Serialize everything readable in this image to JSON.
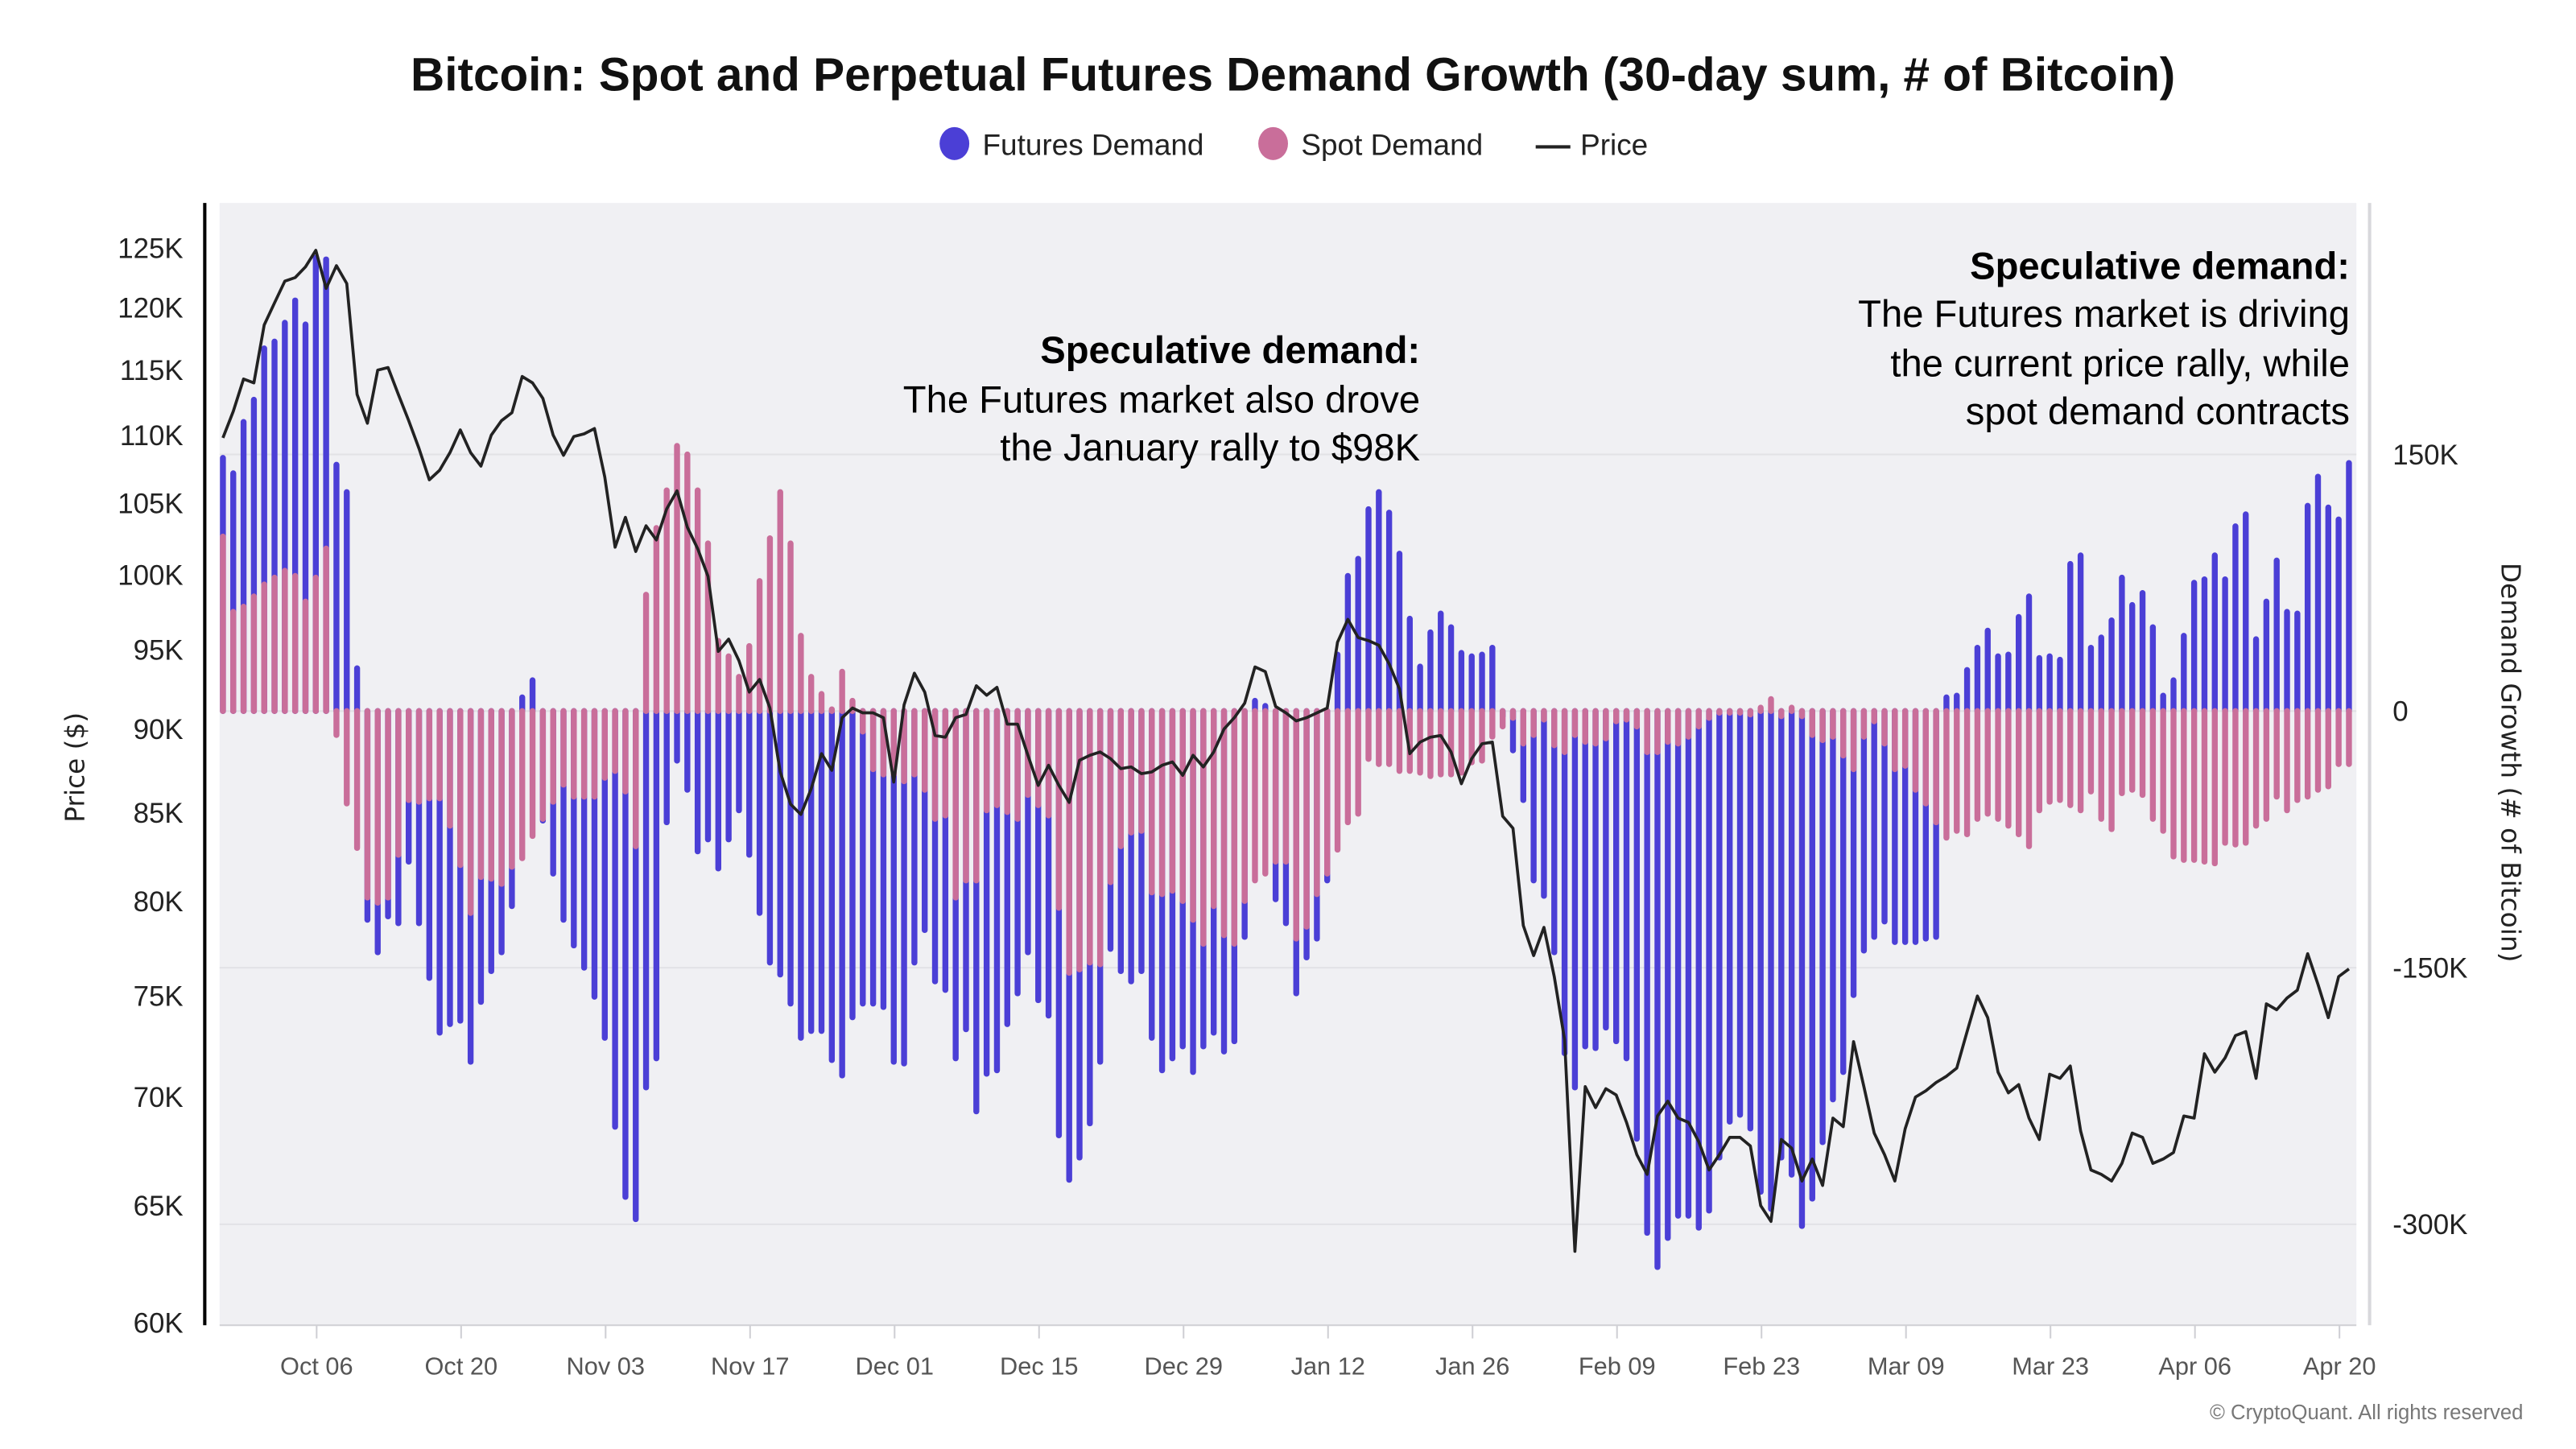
{
  "chart_data": {
    "type": "bar+line",
    "title": "Bitcoin: Spot and Perpetual Futures Demand Growth (30-day sum, # of Bitcoin)",
    "legend": {
      "placement": "top-center",
      "items": [
        {
          "label": "Futures Demand",
          "marker": "circle",
          "color": "#4b3fd6"
        },
        {
          "label": "Spot Demand",
          "marker": "circle",
          "color": "#c96e9a"
        },
        {
          "label": "Price",
          "marker": "line",
          "color": "#222222"
        }
      ]
    },
    "y_left": {
      "label": "Price ($)",
      "scale": "log",
      "unit": "thousands USD",
      "range": [
        59.9,
        128.9
      ],
      "ticks": [
        125,
        120,
        115,
        110,
        105,
        100,
        95,
        90,
        85,
        80,
        75,
        70,
        65,
        60
      ],
      "tick_labels": [
        "125K",
        "120K",
        "115K",
        "110K",
        "105K",
        "100K",
        "95K",
        "90K",
        "85K",
        "80K",
        "75K",
        "70K",
        "65K",
        "60K"
      ]
    },
    "y_right": {
      "label": "Demand Growth (# of Bitcoin)",
      "scale": "linear",
      "unit": "thousands BTC",
      "range": [
        -359,
        297
      ],
      "ticks": [
        150,
        0,
        -150,
        -300
      ],
      "tick_labels": [
        "150K",
        "0",
        "-150K",
        "-300K"
      ]
    },
    "grid": {
      "horizontal": true,
      "vertical": false,
      "plot_background": "#f0f0f3"
    },
    "x_tick_labels": [
      "Oct 06",
      "Oct 20",
      "Nov 03",
      "Nov 17",
      "Dec 01",
      "Dec 15",
      "Dec 29",
      "Jan 12",
      "Jan 26",
      "Feb 09",
      "Feb 23",
      "Mar 09",
      "Mar 23",
      "Apr 06",
      "Apr 20"
    ],
    "dates": [
      "Sep 27",
      "Sep 28",
      "Sep 29",
      "Sep 30",
      "Oct 01",
      "Oct 02",
      "Oct 03",
      "Oct 04",
      "Oct 05",
      "Oct 06",
      "Oct 07",
      "Oct 08",
      "Oct 09",
      "Oct 10",
      "Oct 11",
      "Oct 12",
      "Oct 13",
      "Oct 14",
      "Oct 15",
      "Oct 16",
      "Oct 17",
      "Oct 18",
      "Oct 19",
      "Oct 20",
      "Oct 21",
      "Oct 22",
      "Oct 23",
      "Oct 24",
      "Oct 25",
      "Oct 26",
      "Oct 27",
      "Oct 28",
      "Oct 29",
      "Oct 30",
      "Oct 31",
      "Nov 01",
      "Nov 02",
      "Nov 03",
      "Nov 04",
      "Nov 05",
      "Nov 06",
      "Nov 07",
      "Nov 08",
      "Nov 09",
      "Nov 10",
      "Nov 11",
      "Nov 12",
      "Nov 13",
      "Nov 14",
      "Nov 15",
      "Nov 16",
      "Nov 17",
      "Nov 18",
      "Nov 19",
      "Nov 20",
      "Nov 21",
      "Nov 22",
      "Nov 23",
      "Nov 24",
      "Nov 25",
      "Nov 26",
      "Nov 27",
      "Nov 28",
      "Nov 29",
      "Nov 30",
      "Dec 01",
      "Dec 02",
      "Dec 03",
      "Dec 04",
      "Dec 05",
      "Dec 06",
      "Dec 07",
      "Dec 08",
      "Dec 09",
      "Dec 10",
      "Dec 11",
      "Dec 12",
      "Dec 13",
      "Dec 14",
      "Dec 15",
      "Dec 16",
      "Dec 17",
      "Dec 18",
      "Dec 19",
      "Dec 20",
      "Dec 21",
      "Dec 22",
      "Dec 23",
      "Dec 24",
      "Dec 25",
      "Dec 26",
      "Dec 27",
      "Dec 28",
      "Dec 29",
      "Dec 30",
      "Dec 31",
      "Jan 01",
      "Jan 02",
      "Jan 03",
      "Jan 04",
      "Jan 05",
      "Jan 06",
      "Jan 07",
      "Jan 08",
      "Jan 09",
      "Jan 10",
      "Jan 11",
      "Jan 12",
      "Jan 13",
      "Jan 14",
      "Jan 15",
      "Jan 16",
      "Jan 17",
      "Jan 18",
      "Jan 19",
      "Jan 20",
      "Jan 21",
      "Jan 22",
      "Jan 23",
      "Jan 24",
      "Jan 25",
      "Jan 26",
      "Jan 27",
      "Jan 28",
      "Jan 29",
      "Jan 30",
      "Jan 31",
      "Feb 01",
      "Feb 02",
      "Feb 03",
      "Feb 04",
      "Feb 05",
      "Feb 06",
      "Feb 07",
      "Feb 08",
      "Feb 09",
      "Feb 10",
      "Feb 11",
      "Feb 12",
      "Feb 13",
      "Feb 14",
      "Feb 15",
      "Feb 16",
      "Feb 17",
      "Feb 18",
      "Feb 19",
      "Feb 20",
      "Feb 21",
      "Feb 22",
      "Feb 23",
      "Feb 24",
      "Feb 25",
      "Feb 26",
      "Feb 27",
      "Feb 28",
      "Mar 01",
      "Mar 02",
      "Mar 03",
      "Mar 04",
      "Mar 05",
      "Mar 06",
      "Mar 07",
      "Mar 08",
      "Mar 09",
      "Mar 10",
      "Mar 11",
      "Mar 12",
      "Mar 13",
      "Mar 14",
      "Mar 15",
      "Mar 16",
      "Mar 17",
      "Mar 18",
      "Mar 19",
      "Mar 20",
      "Mar 21",
      "Mar 22",
      "Mar 23",
      "Mar 24",
      "Mar 25",
      "Mar 26",
      "Mar 27",
      "Mar 28",
      "Mar 29",
      "Mar 30",
      "Mar 31",
      "Apr 01",
      "Apr 02",
      "Apr 03",
      "Apr 04",
      "Apr 05",
      "Apr 06",
      "Apr 07",
      "Apr 08",
      "Apr 09",
      "Apr 10",
      "Apr 11",
      "Apr 12",
      "Apr 13",
      "Apr 14",
      "Apr 15",
      "Apr 16",
      "Apr 17",
      "Apr 18",
      "Apr 19",
      "Apr 20",
      "Apr 21"
    ],
    "series": [
      {
        "name": "Futures Demand",
        "axis": "right",
        "type": "bar",
        "color": "#4b3fd6",
        "values": [
          148,
          139,
          169,
          182,
          212,
          216,
          227,
          240,
          226,
          265,
          264,
          144,
          128,
          25,
          -122,
          -141,
          -120,
          -124,
          -88,
          -124,
          -156,
          -188,
          -183,
          -181,
          -205,
          -170,
          -152,
          -141,
          -114,
          8,
          18,
          -64,
          -95,
          -122,
          -137,
          -150,
          -167,
          -191,
          -243,
          -284,
          -297,
          -220,
          -203,
          -65,
          -29,
          -46,
          -82,
          -75,
          -92,
          -75,
          -58,
          -84,
          -118,
          -147,
          -154,
          -171,
          -191,
          -187,
          -187,
          -204,
          -213,
          -179,
          -171,
          -171,
          -173,
          -205,
          -206,
          -147,
          -128,
          -158,
          -163,
          -203,
          -186,
          -234,
          -212,
          -210,
          -183,
          -165,
          -141,
          -169,
          -178,
          -248,
          -274,
          -261,
          -241,
          -205,
          -139,
          -152,
          -158,
          -152,
          -191,
          -210,
          -203,
          -196,
          -211,
          -196,
          -188,
          -199,
          -193,
          -132,
          6,
          3,
          -110,
          -124,
          -165,
          -144,
          -133,
          -99,
          33,
          79,
          89,
          118,
          128,
          116,
          92,
          54,
          26,
          46,
          57,
          49,
          34,
          32,
          33,
          37,
          -3,
          -23,
          -52,
          -99,
          -108,
          -141,
          -200,
          -220,
          -196,
          -197,
          -185,
          -193,
          -203,
          -250,
          -305,
          -325,
          -308,
          -295,
          -295,
          -302,
          -292,
          -261,
          -240,
          -236,
          -244,
          -281,
          -291,
          -261,
          -271,
          -301,
          -285,
          -252,
          -227,
          -211,
          -166,
          -140,
          -132,
          -123,
          -135,
          -135,
          -135,
          -133,
          -132,
          8,
          9,
          24,
          37,
          47,
          32,
          33,
          55,
          67,
          31,
          32,
          30,
          86,
          91,
          37,
          43,
          53,
          78,
          62,
          69,
          49,
          9,
          18,
          44,
          75,
          77,
          91,
          77,
          108,
          115,
          42,
          64,
          88,
          58,
          57,
          120,
          137,
          119,
          112,
          145
        ]
      },
      {
        "name": "Spot Demand",
        "axis": "right",
        "type": "bar",
        "color": "#c96e9a",
        "values": [
          102,
          58,
          61,
          67,
          74,
          78,
          82,
          79,
          64,
          78,
          95,
          -14,
          -54,
          -80,
          -109,
          -112,
          -109,
          -84,
          -52,
          -53,
          -51,
          -51,
          -67,
          -90,
          -118,
          -97,
          -98,
          -101,
          -91,
          -86,
          -73,
          -63,
          -53,
          -43,
          -50,
          -50,
          -50,
          -39,
          -35,
          -47,
          -79,
          68,
          107,
          129,
          155,
          150,
          129,
          98,
          41,
          32,
          20,
          38,
          76,
          101,
          128,
          98,
          44,
          20,
          10,
          1,
          23,
          6,
          -12,
          -34,
          -37,
          -37,
          -41,
          -37,
          -46,
          -63,
          -61,
          -109,
          -99,
          -99,
          -58,
          -55,
          -59,
          -63,
          -49,
          -55,
          -61,
          -115,
          -153,
          -151,
          -147,
          -148,
          -100,
          -79,
          -71,
          -70,
          -106,
          -107,
          -105,
          -111,
          -122,
          -136,
          -114,
          -131,
          -136,
          -111,
          -99,
          -95,
          -88,
          -88,
          -133,
          -126,
          -107,
          -95,
          -81,
          -65,
          -60,
          -28,
          -31,
          -31,
          -35,
          -35,
          -36,
          -38,
          -37,
          -37,
          -36,
          -30,
          -29,
          -15,
          -9,
          -4,
          -19,
          -14,
          -5,
          -20,
          -24,
          -14,
          -18,
          -19,
          -16,
          -6,
          -5,
          -9,
          -24,
          -24,
          -18,
          -19,
          -15,
          -9,
          -4,
          -1,
          -1,
          -1,
          -2,
          2,
          7,
          -3,
          2,
          -3,
          -14,
          -17,
          -15,
          -26,
          -34,
          -15,
          -6,
          -19,
          -34,
          -32,
          -46,
          -54,
          -65,
          -74,
          -70,
          -72,
          -63,
          -60,
          -63,
          -67,
          -72,
          -79,
          -58,
          -53,
          -52,
          -55,
          -58,
          -47,
          -63,
          -69,
          -48,
          -46,
          -49,
          -63,
          -70,
          -85,
          -87,
          -87,
          -88,
          -89,
          -77,
          -78,
          -77,
          -67,
          -63,
          -50,
          -58,
          -52,
          -50,
          -46,
          -44,
          -31,
          -31
        ]
      },
      {
        "name": "Price",
        "axis": "left",
        "type": "line",
        "color": "#222222",
        "values": [
          109.8,
          111.8,
          114.3,
          114.0,
          118.6,
          120.4,
          122.2,
          122.5,
          123.4,
          124.8,
          121.6,
          123.5,
          122.0,
          113.1,
          110.9,
          115.0,
          115.2,
          113.1,
          111.1,
          109.0,
          106.7,
          107.4,
          108.7,
          110.4,
          108.7,
          107.7,
          110.0,
          111.1,
          111.7,
          114.5,
          114.0,
          112.8,
          110.0,
          108.5,
          109.9,
          110.1,
          110.5,
          106.9,
          101.9,
          104.0,
          101.6,
          103.4,
          102.4,
          104.6,
          105.9,
          103.3,
          101.8,
          99.9,
          94.9,
          95.7,
          94.3,
          92.3,
          93.1,
          91.3,
          87.4,
          85.5,
          84.9,
          86.4,
          88.5,
          87.5,
          90.7,
          91.3,
          91.0,
          91.0,
          90.7,
          86.8,
          91.5,
          93.5,
          92.3,
          89.6,
          89.5,
          90.7,
          90.9,
          92.7,
          92.1,
          92.6,
          90.3,
          90.3,
          88.4,
          86.6,
          87.8,
          86.6,
          85.6,
          88.1,
          88.4,
          88.6,
          88.2,
          87.6,
          87.7,
          87.3,
          87.4,
          87.8,
          88.0,
          87.2,
          88.4,
          87.7,
          88.6,
          90.0,
          90.7,
          91.6,
          93.9,
          93.6,
          91.4,
          91.0,
          90.5,
          90.7,
          91.0,
          91.3,
          95.5,
          97.0,
          95.8,
          95.6,
          95.3,
          94.1,
          92.5,
          88.5,
          89.2,
          89.5,
          89.6,
          88.6,
          86.7,
          88.2,
          89.1,
          89.2,
          84.8,
          84.1,
          78.7,
          77.1,
          78.6,
          76.0,
          72.8,
          63.0,
          70.5,
          69.5,
          70.4,
          70.1,
          68.8,
          67.3,
          66.4,
          69.1,
          69.8,
          69.0,
          68.8,
          67.9,
          66.6,
          67.3,
          68.1,
          68.1,
          67.7,
          65.0,
          64.3,
          68.0,
          67.6,
          66.1,
          67.1,
          65.9,
          69.0,
          68.6,
          72.7,
          70.5,
          68.3,
          67.3,
          66.1,
          68.5,
          70.0,
          70.3,
          70.7,
          71.0,
          71.4,
          73.2,
          75.0,
          73.9,
          71.2,
          70.2,
          70.6,
          69.0,
          68.0,
          71.1,
          70.9,
          71.5,
          68.4,
          66.6,
          66.4,
          66.1,
          66.9,
          68.3,
          68.1,
          66.9,
          67.1,
          67.4,
          69.1,
          69.0,
          72.1,
          71.2,
          71.9,
          73.0,
          73.2,
          70.9,
          74.6,
          74.3,
          74.9,
          75.3,
          77.2,
          75.6,
          73.9,
          76.0,
          76.4
        ]
      }
    ],
    "annotations": [
      {
        "heading": "Speculative demand:",
        "lines": [
          "The Futures market also drove",
          "the January rally to $98K"
        ]
      },
      {
        "heading": "Speculative demand:",
        "lines": [
          "The Futures market is driving",
          "the current price rally, while",
          "spot demand contracts"
        ]
      }
    ]
  },
  "footer": {
    "copyright": "© CryptoQuant. All rights reserved"
  }
}
